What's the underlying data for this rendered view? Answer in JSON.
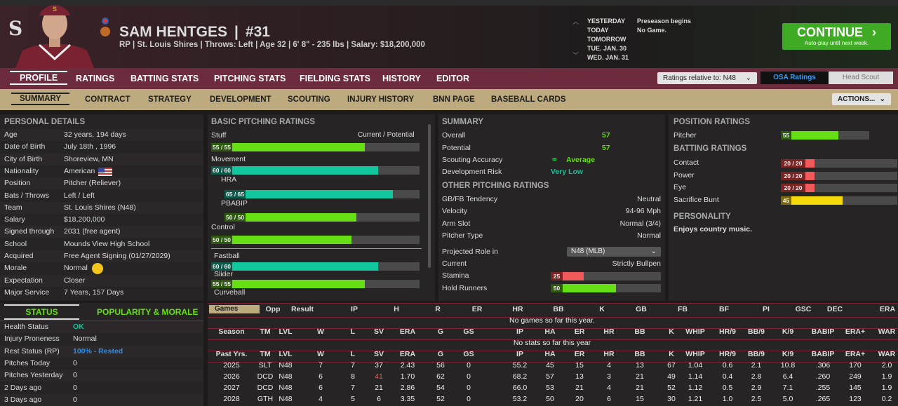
{
  "header": {
    "name": "SAM HENTGES",
    "number": "#31",
    "subtitle": "RP | St. Louis Shires  |  Throws: Left  |  Age 32  |  6' 8\" - 235 lbs  |  Salary: $18,200,000",
    "logo_letter": "S"
  },
  "calendar": {
    "dates": [
      "YESTERDAY",
      "TODAY",
      "TOMORROW",
      "TUE. JAN. 30",
      "WED. JAN. 31"
    ],
    "events": [
      "Preseason begins",
      "No Game."
    ]
  },
  "continue": {
    "label": "CONTINUE",
    "sub": "Auto-play until next week."
  },
  "nav": {
    "items": [
      "PROFILE",
      "RATINGS",
      "BATTING STATS",
      "PITCHING STATS",
      "FIELDING STATS",
      "HISTORY",
      "EDITOR"
    ],
    "ratings_relative": "Ratings relative to: N48",
    "osa": "OSA Ratings",
    "head_scout": "Head Scout"
  },
  "subnav": {
    "items": [
      "SUMMARY",
      "CONTRACT",
      "STRATEGY",
      "DEVELOPMENT",
      "SCOUTING",
      "INJURY HISTORY",
      "BNN PAGE",
      "BASEBALL CARDS"
    ],
    "actions": "ACTIONS..."
  },
  "personal": {
    "title": "PERSONAL DETAILS",
    "rows": [
      [
        "Age",
        "32 years, 194 days"
      ],
      [
        "Date of Birth",
        "July 18th , 1996"
      ],
      [
        "City of Birth",
        "Shoreview, MN"
      ],
      [
        "Nationality",
        "American"
      ],
      [
        "Position",
        "Pitcher (Reliever)"
      ],
      [
        "Bats / Throws",
        "Left / Left"
      ],
      [
        "Team",
        "St. Louis Shires (N48)"
      ],
      [
        "Salary",
        "$18,200,000"
      ],
      [
        "Signed through",
        "2031 (free agent)"
      ],
      [
        "School",
        "Mounds View High School"
      ],
      [
        "Acquired",
        "Free Agent Signing (01/27/2029)"
      ],
      [
        "Morale",
        "Normal"
      ],
      [
        "Expectation",
        "Closer"
      ],
      [
        "Major Service",
        "7 Years, 157 Days"
      ]
    ]
  },
  "status": {
    "tab1": "STATUS",
    "tab2": "POPULARITY & MORALE",
    "rows": [
      [
        "Health Status",
        "OK"
      ],
      [
        "Injury Proneness",
        "Normal"
      ],
      [
        "Rest Status (RP)",
        "100% - Rested"
      ],
      [
        "Pitches Today",
        "0"
      ],
      [
        "Pitches Yesterday",
        "0"
      ],
      [
        "2 Days ago",
        "0"
      ],
      [
        "3 Days ago",
        "0"
      ]
    ]
  },
  "pitching": {
    "title": "BASIC PITCHING RATINGS",
    "cp": "Current / Potential",
    "ratings": [
      {
        "name": "Stuff",
        "label": "55 / 55",
        "value": 55,
        "color": "#66e014"
      },
      {
        "name": "Movement",
        "label": "60 / 60",
        "value": 60,
        "color": "#12c79e"
      },
      {
        "name": "HRA",
        "label": "65 / 65",
        "value": 65,
        "color": "#12c79e"
      },
      {
        "name": "PBABIP",
        "label": "50 / 50",
        "value": 50,
        "color": "#66e014"
      },
      {
        "name": "Control",
        "label": "50 / 50",
        "value": 50,
        "color": "#66e014"
      },
      {
        "name": "Fastball",
        "label": "60 / 60",
        "value": 60,
        "color": "#12c79e"
      },
      {
        "name": "Slider",
        "label": "55 / 55",
        "value": 55,
        "color": "#66e014"
      },
      {
        "name": "Curveball"
      }
    ]
  },
  "summary": {
    "title": "SUMMARY",
    "overall_label": "Overall",
    "overall": "57",
    "potential_label": "Potential",
    "potential": "57",
    "scouting_label": "Scouting Accuracy",
    "scouting": "Average",
    "risk_label": "Development Risk",
    "risk": "Very Low"
  },
  "other": {
    "title": "OTHER PITCHING RATINGS",
    "rows": [
      [
        "GB/FB Tendency",
        "Neutral"
      ],
      [
        "Velocity",
        "94-96 Mph"
      ],
      [
        "Arm Slot",
        "Normal (3/4)"
      ],
      [
        "Pitcher Type",
        "Normal"
      ]
    ],
    "projected_label": "Projected Role in",
    "projected": "N48 (MLB)",
    "current_label": "Current",
    "current": "Strictly Bullpen",
    "stamina_label": "Stamina",
    "stamina": 25,
    "hold_label": "Hold Runners",
    "hold": 50
  },
  "position": {
    "title": "POSITION RATINGS",
    "pitcher_label": "Pitcher",
    "pitcher": 55,
    "batting_title": "BATTING RATINGS",
    "batting": [
      {
        "name": "Contact",
        "label": "20 / 20",
        "value": 20,
        "color": "#f05a5a"
      },
      {
        "name": "Power",
        "label": "20 / 20",
        "value": 20,
        "color": "#f05a5a"
      },
      {
        "name": "Eye",
        "label": "20 / 20",
        "value": 20,
        "color": "#f05a5a"
      },
      {
        "name": "Sacrifice Bunt",
        "label": "45",
        "value": 45,
        "color": "#f5d90a"
      }
    ],
    "personality_title": "PERSONALITY",
    "personality": "Enjoys country music."
  },
  "stats": {
    "games_select": "Games",
    "games_headers": [
      "Opp",
      "Result",
      "IP",
      "H",
      "R",
      "ER",
      "HR",
      "BB",
      "K",
      "GB",
      "FB",
      "BF",
      "PI",
      "GSC",
      "DEC",
      "ERA"
    ],
    "no_games": "No games so far this year.",
    "season_headers": [
      "Season",
      "TM",
      "LVL",
      "W",
      "L",
      "SV",
      "ERA",
      "G",
      "GS",
      "IP",
      "HA",
      "ER",
      "HR",
      "BB",
      "K",
      "WHIP",
      "HR/9",
      "BB/9",
      "K/9",
      "BABIP",
      "ERA+",
      "WAR"
    ],
    "no_stats": "No stats so far this year",
    "past_headers": [
      "Past Yrs.",
      "TM",
      "LVL",
      "W",
      "L",
      "SV",
      "ERA",
      "G",
      "GS",
      "IP",
      "HA",
      "ER",
      "HR",
      "BB",
      "K",
      "WHIP",
      "HR/9",
      "BB/9",
      "K/9",
      "BABIP",
      "ERA+",
      "WAR"
    ],
    "rows": [
      [
        "2025",
        "SLT",
        "N48",
        "7",
        "7",
        "37",
        "2.43",
        "56",
        "0",
        "55.2",
        "45",
        "15",
        "4",
        "13",
        "67",
        "1.04",
        "0.6",
        "2.1",
        "10.8",
        ".306",
        "170",
        "2.0"
      ],
      [
        "2026",
        "DCD",
        "N48",
        "6",
        "8",
        "41",
        "1.70",
        "62",
        "0",
        "68.2",
        "57",
        "13",
        "3",
        "21",
        "49",
        "1.14",
        "0.4",
        "2.8",
        "6.4",
        ".260",
        "249",
        "1.9"
      ],
      [
        "2027",
        "DCD",
        "N48",
        "6",
        "7",
        "21",
        "2.86",
        "54",
        "0",
        "66.0",
        "53",
        "21",
        "4",
        "21",
        "52",
        "1.12",
        "0.5",
        "2.9",
        "7.1",
        ".255",
        "145",
        "1.9"
      ],
      [
        "2028",
        "GTH",
        "N48",
        "4",
        "5",
        "6",
        "3.35",
        "52",
        "0",
        "53.2",
        "50",
        "20",
        "6",
        "15",
        "30",
        "1.21",
        "1.0",
        "2.5",
        "5.0",
        ".265",
        "123",
        "0.2"
      ]
    ],
    "highlight_color": "#e05a5a"
  }
}
